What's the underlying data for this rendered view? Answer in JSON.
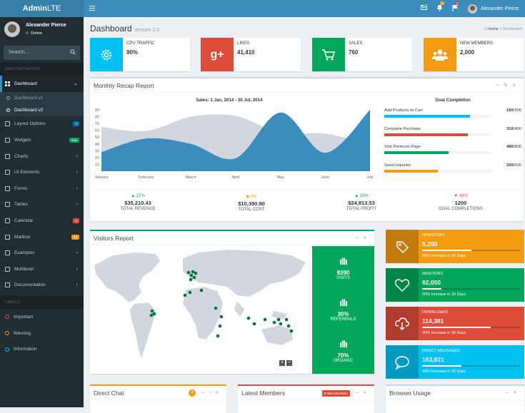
{
  "brand": {
    "bold": "Admin",
    "light": "LTE"
  },
  "user": {
    "name": "Alexander Pierce",
    "status": "Online"
  },
  "topbar": {
    "mail_count": "4",
    "bell_count": "10",
    "flag_count": "9",
    "user_name": "Alexander Pierce"
  },
  "search": {
    "placeholder": "Search..."
  },
  "sidebar": {
    "header": "MAIN NAVIGATION",
    "dashboard": "Dashboard",
    "sub": [
      "Dashboard v1",
      "Dashboard v2"
    ],
    "items": [
      {
        "label": "Layout Options",
        "badge": "4",
        "badge_color": "#0073b7"
      },
      {
        "label": "Widgets",
        "badge": "new",
        "badge_color": "#00a65a"
      },
      {
        "label": "Charts",
        "badge": "",
        "badge_color": ""
      },
      {
        "label": "UI Elements",
        "badge": "",
        "badge_color": ""
      },
      {
        "label": "Forms",
        "badge": "",
        "badge_color": ""
      },
      {
        "label": "Tables",
        "badge": "",
        "badge_color": ""
      },
      {
        "label": "Calendar",
        "badge": "3",
        "badge_color": "#dd4b39"
      },
      {
        "label": "Mailbox",
        "badge": "12",
        "badge_color": "#f39c12"
      },
      {
        "label": "Examples",
        "badge": "",
        "badge_color": ""
      },
      {
        "label": "Multilevel",
        "badge": "",
        "badge_color": ""
      },
      {
        "label": "Documentation",
        "badge": "",
        "badge_color": ""
      }
    ],
    "labels_header": "LABELS",
    "labels": [
      {
        "label": "Important",
        "color": "#dd4b39"
      },
      {
        "label": "Warning",
        "color": "#f39c12"
      },
      {
        "label": "Information",
        "color": "#00c0ef"
      }
    ]
  },
  "page": {
    "title": "Dashboard",
    "subtitle": "Version 2.0",
    "crumb_home": "Home",
    "crumb_current": "Dashboard"
  },
  "info_boxes": [
    {
      "title": "CPU TRAFFIC",
      "number": "90%",
      "color": "#00c0ef",
      "icon": "gear-icon"
    },
    {
      "title": "LIKES",
      "number": "41,410",
      "color": "#dd4b39",
      "icon": "google-plus-icon"
    },
    {
      "title": "SALES",
      "number": "760",
      "color": "#00a65a",
      "icon": "cart-icon"
    },
    {
      "title": "NEW MEMBERS",
      "number": "2,000",
      "color": "#f39c12",
      "icon": "users-icon"
    }
  ],
  "recap": {
    "title": "Monthly Recap Report",
    "chart_title": "Sales: 1 Jan, 2014 - 30 Jul, 2014",
    "goal_title": "Goal Completion",
    "goals": [
      {
        "label": "Add Products to Cart",
        "value": "160",
        "total": "/200",
        "pct": 0.8,
        "color": "#00c0ef"
      },
      {
        "label": "Complete Purchase",
        "value": "310",
        "total": "/400",
        "pct": 0.78,
        "color": "#dd4b39"
      },
      {
        "label": "Visit Premium Page",
        "value": "480",
        "total": "/800",
        "pct": 0.6,
        "color": "#00a65a"
      },
      {
        "label": "Send Inquiries",
        "value": "250",
        "total": "/500",
        "pct": 0.5,
        "color": "#f39c12"
      }
    ],
    "stats": [
      {
        "pct": "▲ 17%",
        "value": "$35,210.43",
        "label": "TOTAL REVENUE",
        "color": "#00a65a"
      },
      {
        "pct": "◆ 0%",
        "value": "$10,390.90",
        "label": "TOTAL COST",
        "color": "#f39c12"
      },
      {
        "pct": "▲ 20%",
        "value": "$24,813.53",
        "label": "TOTAL PROFIT",
        "color": "#00a65a"
      },
      {
        "pct": "▼ 18%",
        "value": "1200",
        "label": "GOAL COMPLETIONS",
        "color": "#dd4b39"
      }
    ]
  },
  "chart_data": {
    "type": "area",
    "title": "Sales: 1 Jan, 2014 - 30 Jul, 2014",
    "categories": [
      "January",
      "February",
      "March",
      "April",
      "May",
      "June",
      "July"
    ],
    "ylim": [
      0,
      90
    ],
    "yticks": [
      10,
      20,
      30,
      40,
      50,
      60,
      70,
      80,
      90
    ],
    "series": [
      {
        "values": [
          65,
          59,
          80,
          81,
          56,
          55,
          40
        ],
        "color": "#d2d6de"
      },
      {
        "values": [
          28,
          48,
          40,
          19,
          86,
          27,
          90
        ],
        "color": "#3c8dbc"
      }
    ]
  },
  "visitors": {
    "title": "Visitors Report",
    "stats": [
      {
        "value": "8390",
        "label": "VISITS"
      },
      {
        "value": "30%",
        "label": "REFERRALS"
      },
      {
        "value": "70%",
        "label": "ORGANIC"
      }
    ],
    "zoom_in": "+",
    "zoom_out": "−"
  },
  "fboxes": [
    {
      "title": "INVENTORY",
      "number": "5,200",
      "desc": "50% Increase in 30 Days",
      "pct": 0.5,
      "color": "#f39c12",
      "icon": "tag-icon"
    },
    {
      "title": "MENTIONS",
      "number": "92,050",
      "desc": "20% Increase in 30 Days",
      "pct": 0.2,
      "color": "#00a65a",
      "icon": "heart-icon"
    },
    {
      "title": "DOWNLOADS",
      "number": "114,381",
      "desc": "70% Increase in 30 Days",
      "pct": 0.7,
      "color": "#dd4b39",
      "icon": "cloud-download-icon"
    },
    {
      "title": "DIRECT MESSAGES",
      "number": "163,921",
      "desc": "40% Increase in 30 Days",
      "pct": 0.4,
      "color": "#00c0ef",
      "icon": "chat-bubble-icon"
    }
  ],
  "bottom": {
    "chat_title": "Direct Chat",
    "chat_badge": "3",
    "members_title": "Latest Members",
    "members_badge": "8 New Members",
    "browser_title": "Browser Usage"
  }
}
